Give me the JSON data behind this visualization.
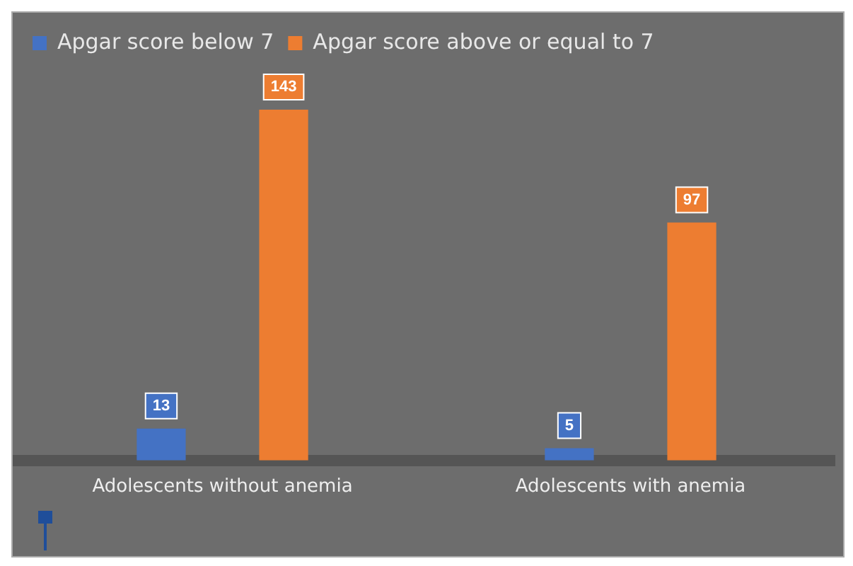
{
  "chart_data": {
    "type": "bar",
    "categories": [
      "Adolescents without anemia",
      "Adolescents with anemia"
    ],
    "series": [
      {
        "name": "Apgar score below 7",
        "color": "#4472c4",
        "values": [
          13,
          5
        ]
      },
      {
        "name": "Apgar score above or equal to 7",
        "color": "#ed7d31",
        "values": [
          143,
          97
        ]
      }
    ],
    "data_labels": true,
    "legend": "top left",
    "grid": false
  }
}
